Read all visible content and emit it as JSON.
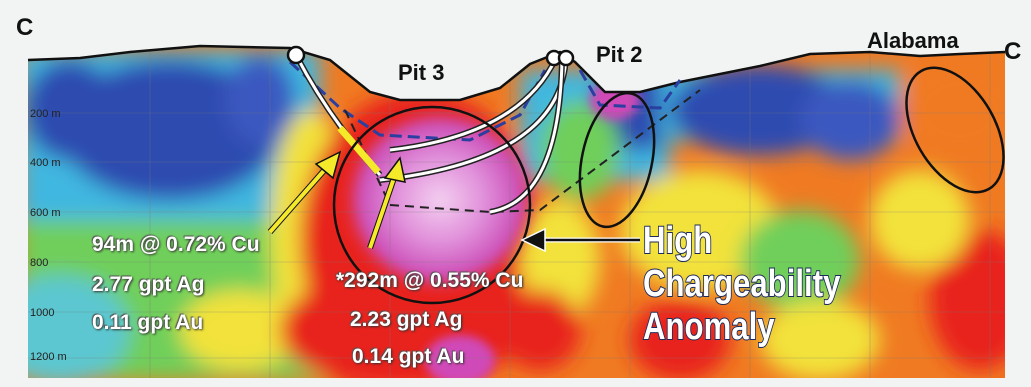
{
  "section": {
    "left_label": "C",
    "right_label": "C",
    "pits": {
      "pit3": "Pit 3",
      "pit2": "Pit 2",
      "alabama": "Alabama"
    },
    "depths": [
      "200 m",
      "400 m",
      "600 m",
      "800",
      "1000",
      "1200 m"
    ]
  },
  "intercepts": {
    "hole1": [
      "94m @ 0.72% Cu",
      "2.77 gpt Ag",
      "0.11 gpt Au"
    ],
    "hole2": [
      "*292m @ 0.55% Cu",
      "2.23 gpt Ag",
      "0.14 gpt Au"
    ]
  },
  "anomaly_label": [
    "High",
    "Chargeability",
    "Anomaly"
  ],
  "colors": {
    "low": "#2f4bb0",
    "mid_low": "#3fb7e0",
    "mid": "#6fcf5a",
    "mid_high": "#f2e23a",
    "high": "#f07a22",
    "very_high": "#e8241f",
    "peak": "#d04ab8",
    "arrow": "#f5ea2a"
  }
}
